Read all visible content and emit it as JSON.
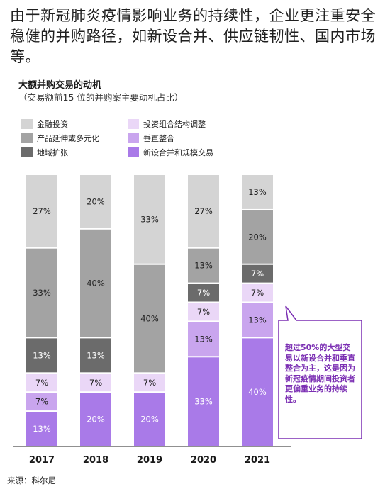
{
  "headline": "由于新冠肺炎疫情影响业务的持续性，企业更注重安全稳健的并购路径，如新设合并、供应链韧性、国内市场等。",
  "source": "来源：科尔尼",
  "callout": "超过50%的大型交易以新设合并和垂直整合为主，这是因为新冠疫情期间投资者更偏重业务的持续性。",
  "colors": {
    "金融投资": "#d4d4d4",
    "产品延伸或多元化": "#a3a3a3",
    "地域扩张": "#6b6b6b",
    "投资组合结构调整": "#ead7f7",
    "垂直整合": "#c9a5ee",
    "新设合并和规模交易": "#a97ae8",
    "callout_border": "#7b2fb3"
  },
  "chart_data": {
    "type": "bar",
    "stacked": true,
    "title": "大额并购交易的动机",
    "subtitle": "（交易额前15 位的并购案主要动机占比）",
    "categories": [
      "2017",
      "2018",
      "2019",
      "2020",
      "2021"
    ],
    "ylim": [
      0,
      100
    ],
    "legend_position": "top-left",
    "series": [
      {
        "name": "新设合并和规模交易",
        "values": [
          13,
          20,
          20,
          33,
          40
        ],
        "labels": [
          "13%",
          "20%",
          "20%",
          "33%",
          "40%"
        ]
      },
      {
        "name": "垂直整合",
        "values": [
          7,
          0,
          0,
          13,
          13
        ],
        "labels": [
          "7%",
          "",
          "",
          "13%",
          "13%"
        ]
      },
      {
        "name": "投资组合结构调整",
        "values": [
          7,
          7,
          7,
          7,
          7
        ],
        "labels": [
          "7%",
          "7%",
          "7%",
          "7%",
          "7%"
        ]
      },
      {
        "name": "地域扩张",
        "values": [
          13,
          13,
          0,
          7,
          7
        ],
        "labels": [
          "13%",
          "13%",
          "",
          "7%",
          "7%"
        ]
      },
      {
        "name": "产品延伸或多元化",
        "values": [
          33,
          40,
          40,
          13,
          20
        ],
        "labels": [
          "33%",
          "40%",
          "40%",
          "13%",
          "20%"
        ]
      },
      {
        "name": "金融投资",
        "values": [
          27,
          20,
          33,
          27,
          13
        ],
        "labels": [
          "27%",
          "20%",
          "33%",
          "27%",
          "13%"
        ]
      }
    ],
    "legend": [
      {
        "name": "金融投资"
      },
      {
        "name": "投资组合结构调整"
      },
      {
        "name": "产品延伸或多元化"
      },
      {
        "name": "垂直整合"
      },
      {
        "name": "地域扩张"
      },
      {
        "name": "新设合并和规模交易"
      }
    ]
  }
}
